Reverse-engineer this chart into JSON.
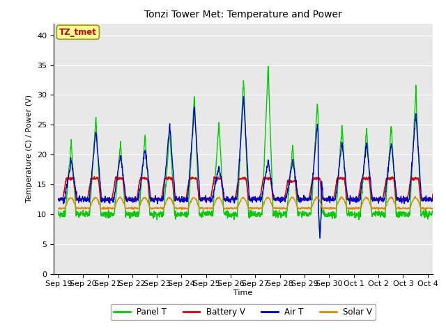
{
  "title": "Tonzi Tower Met: Temperature and Power",
  "xlabel": "Time",
  "ylabel": "Temperature (C) / Power (V)",
  "ylim": [
    0,
    42
  ],
  "yticks": [
    0,
    5,
    10,
    15,
    20,
    25,
    30,
    35,
    40
  ],
  "annotation_text": "TZ_tmet",
  "annotation_color": "#cc0000",
  "annotation_bg": "#ffff99",
  "bg_color": "#e8e8e8",
  "line_colors": {
    "panel_t": "#00cc00",
    "battery_v": "#dd0000",
    "air_t": "#0000cc",
    "solar_v": "#dd8800"
  },
  "legend_labels": [
    "Panel T",
    "Battery V",
    "Air T",
    "Solar V"
  ],
  "xtick_labels": [
    "Sep 19",
    "Sep 20",
    "Sep 21",
    "Sep 22",
    "Sep 23",
    "Sep 24",
    "Sep 25",
    "Sep 26",
    "Sep 27",
    "Sep 28",
    "Sep 29",
    "Sep 30",
    "Oct 1",
    "Oct 2",
    "Oct 3",
    "Oct 4"
  ],
  "n_days": 16,
  "points_per_day": 96,
  "panel_peaks": [
    22,
    26.5,
    22,
    23.5,
    24,
    30,
    25.5,
    33,
    35,
    21.5,
    29,
    25,
    24.5,
    25,
    31,
    16
  ],
  "air_peaks": [
    19,
    24,
    20,
    21,
    25,
    28,
    18,
    30,
    19,
    19,
    25,
    22,
    22,
    22,
    27,
    16
  ],
  "batt_peaks": [
    16,
    16,
    16,
    16,
    16,
    16,
    16,
    16,
    16,
    15.5,
    16,
    16,
    16,
    16,
    16,
    16
  ],
  "night_base_panel": 10.0,
  "night_base_air": 12.5,
  "night_base_batt": 12.5,
  "solar_base": 11.0,
  "solar_peak": 1.8
}
